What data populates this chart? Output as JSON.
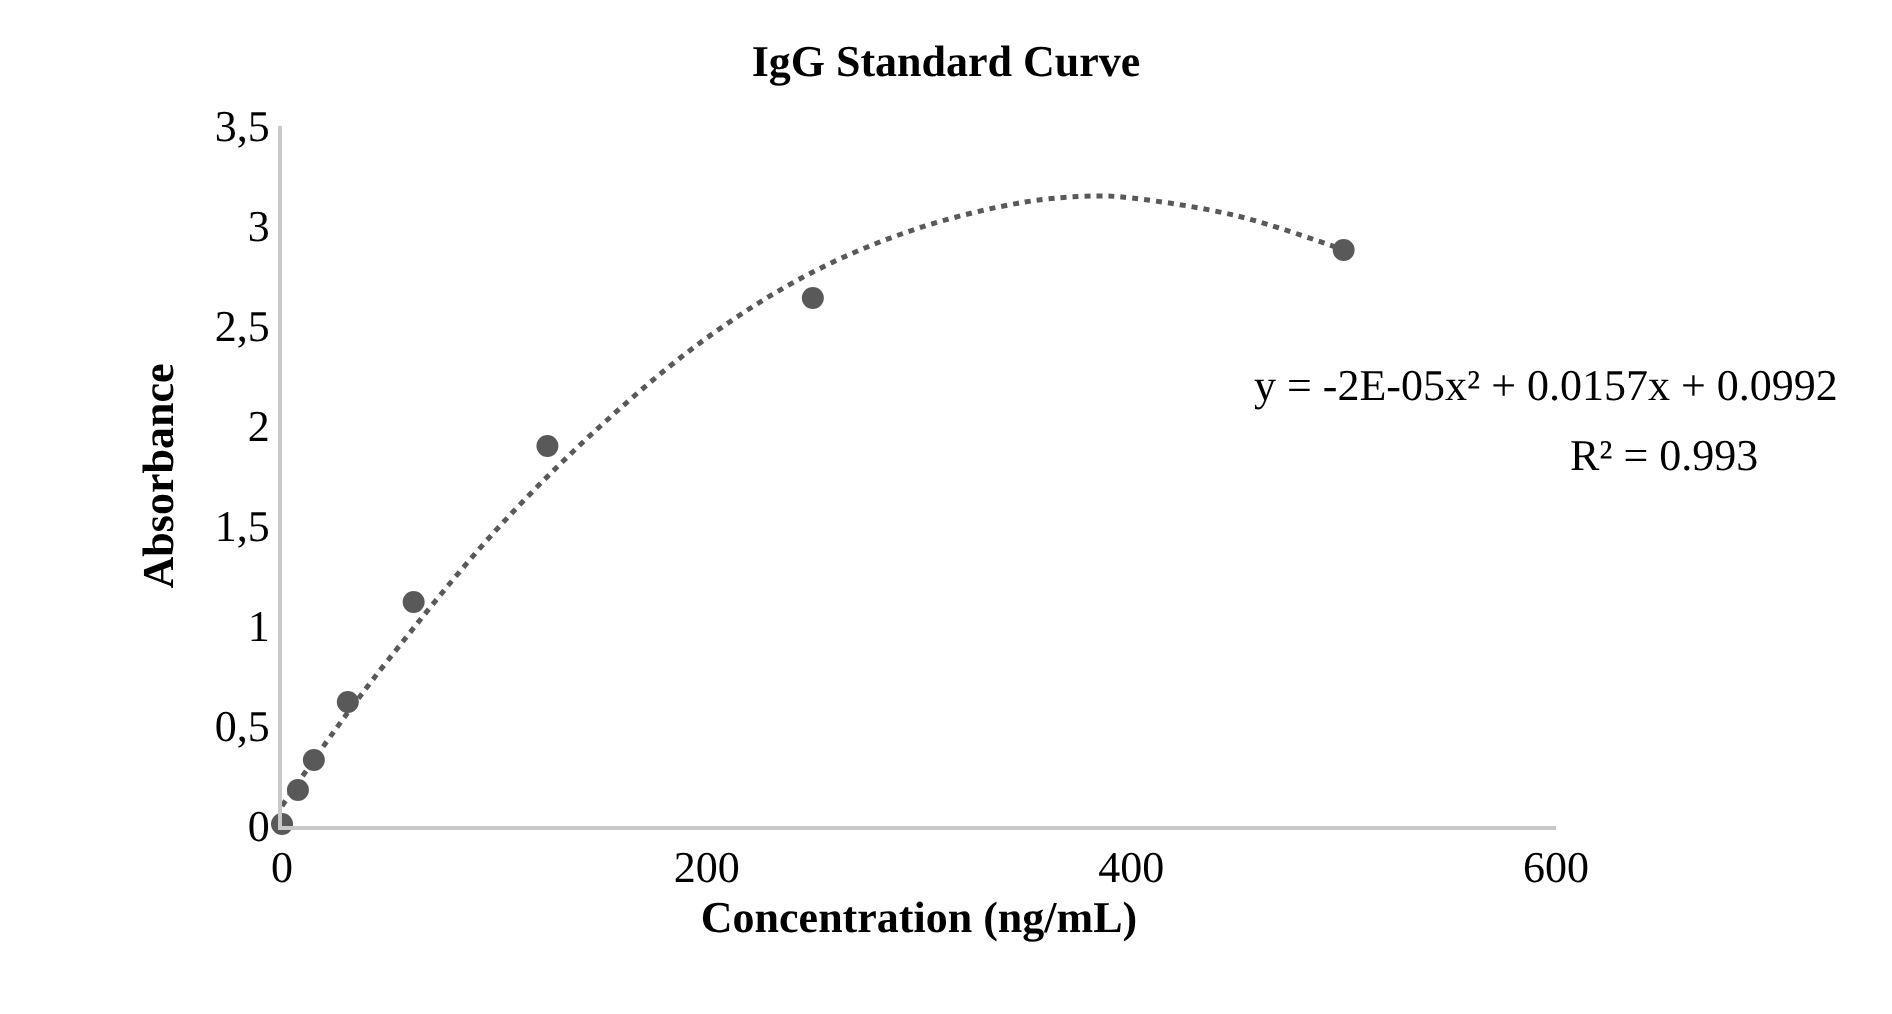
{
  "chart_data": {
    "type": "scatter",
    "title": "IgG Standard Curve",
    "xlabel": "Concentration (ng/mL)",
    "ylabel": "Absorbance",
    "xlim": [
      0,
      600
    ],
    "xticks": [
      0,
      200,
      400,
      600
    ],
    "ylim": [
      0,
      3.5
    ],
    "yticks": [
      0,
      {
        "value": 0.5,
        "label": "0,5"
      },
      1,
      {
        "value": 1.5,
        "label": "1,5"
      },
      2,
      {
        "value": 2.5,
        "label": "2,5"
      },
      3,
      {
        "value": 3.5,
        "label": "3,5"
      }
    ],
    "marker": "circle",
    "series": [
      {
        "color": "#595959",
        "x": [
          0,
          7.5,
          15,
          31,
          62,
          125,
          250,
          500
        ],
        "values": [
          0.01,
          0.18,
          0.33,
          0.62,
          1.12,
          1.9,
          2.64,
          2.88
        ]
      },
      {
        "type": "line",
        "color": "#595959",
        "line_style": "dotted",
        "marker": "none",
        "x": [
          0,
          25,
          50,
          100,
          150,
          200,
          250,
          300,
          350,
          383,
          400,
          450,
          500
        ],
        "values": [
          0.1,
          0.48,
          0.83,
          1.47,
          2.0,
          2.44,
          2.77,
          2.99,
          3.12,
          3.15,
          3.14,
          3.05,
          2.88
        ]
      }
    ],
    "annotations": [
      "y = -2E-05x² + 0.0157x + 0.0992",
      "R² = 0.993"
    ]
  }
}
